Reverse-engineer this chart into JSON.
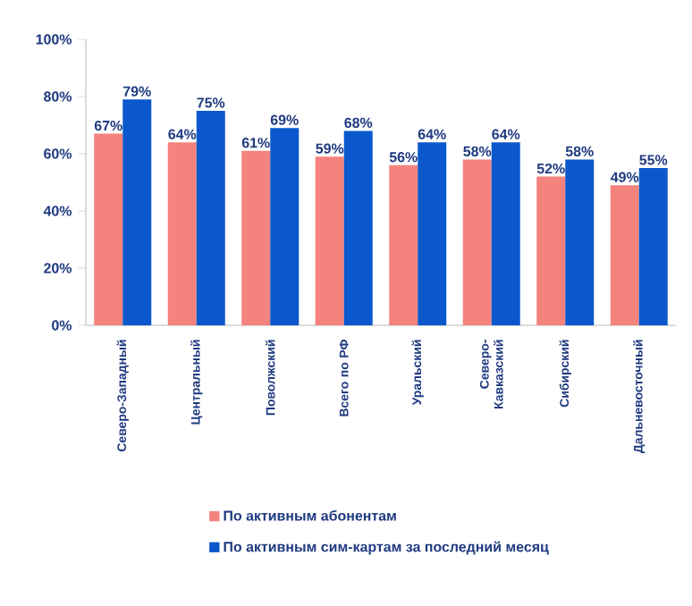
{
  "chart_data": {
    "type": "bar",
    "categories": [
      "Северо-Западный",
      "Центральный",
      "Поволжский",
      "Всего по РФ",
      "Уральский",
      "Северо-Кавказский",
      "Сибирский",
      "Дальневосточный"
    ],
    "series": [
      {
        "name": "По активным абонентам",
        "color": "#f4837d",
        "values": [
          67,
          64,
          61,
          59,
          56,
          58,
          52,
          49
        ],
        "value_labels": [
          "67%",
          "64%",
          "61%",
          "59%",
          "56%",
          "58%",
          "52%",
          "49%"
        ]
      },
      {
        "name": "По активным сим-картам за последний месяц",
        "color": "#0a58cc",
        "values": [
          79,
          75,
          69,
          68,
          64,
          64,
          58,
          55
        ],
        "value_labels": [
          "79%",
          "75%",
          "69%",
          "68%",
          "64%",
          "64%",
          "58%",
          "55%"
        ]
      }
    ],
    "ylim": [
      0,
      100
    ],
    "yticks": [
      {
        "value": 0,
        "label": "0%"
      },
      {
        "value": 20,
        "label": "20%"
      },
      {
        "value": 40,
        "label": "40%"
      },
      {
        "value": 60,
        "label": "60%"
      },
      {
        "value": 80,
        "label": "80%"
      },
      {
        "value": 100,
        "label": "100%"
      }
    ],
    "grid": false,
    "legend": "bottom"
  }
}
